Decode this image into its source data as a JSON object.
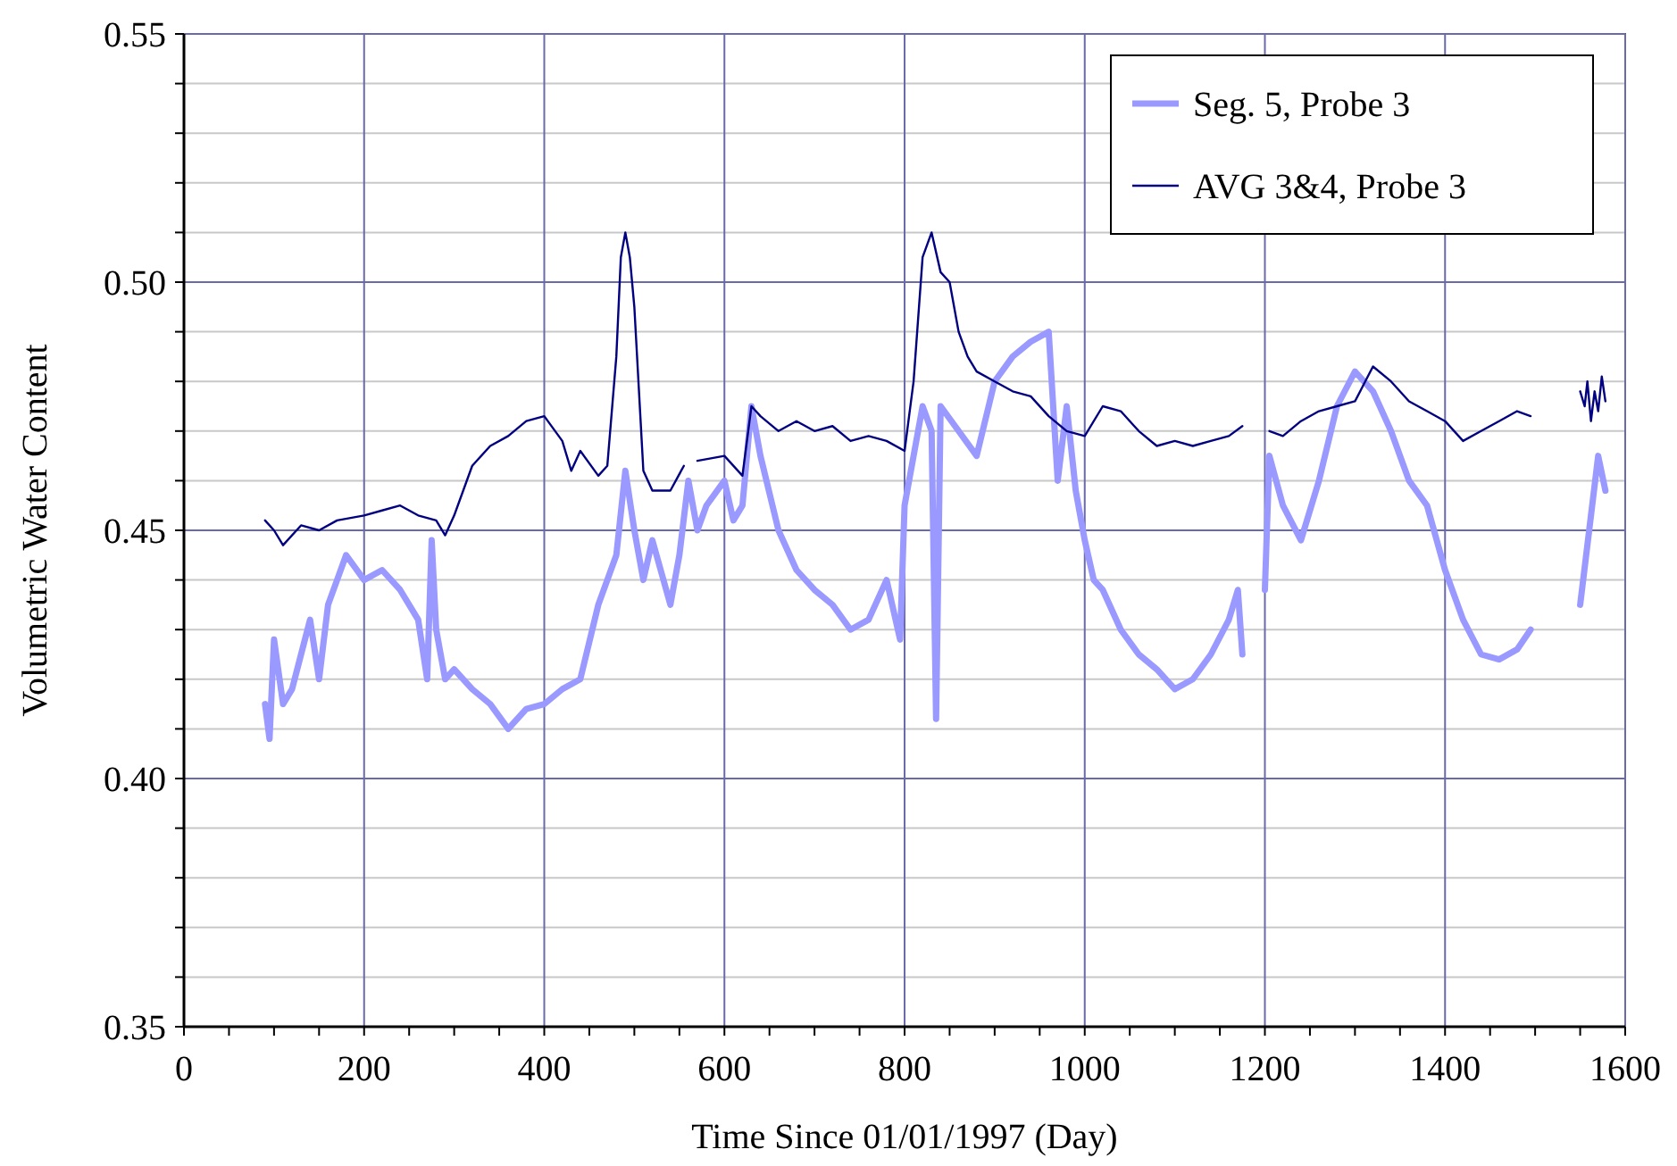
{
  "chart_data": {
    "type": "line",
    "xlabel": "Time Since 01/01/1997 (Day)",
    "ylabel": "Volumetric Water Content",
    "xlim": [
      0,
      1600
    ],
    "ylim": [
      0.35,
      0.55
    ],
    "xticks": [
      0,
      {
        "value": 50,
        "label": null
      },
      {
        "value": 100,
        "label": null
      },
      {
        "value": 150,
        "label": null
      },
      200,
      {
        "value": 250,
        "label": null
      },
      {
        "value": 300,
        "label": null
      },
      {
        "value": 350,
        "label": null
      },
      400,
      {
        "value": 450,
        "label": null
      },
      {
        "value": 500,
        "label": null
      },
      {
        "value": 550,
        "label": null
      },
      600,
      {
        "value": 650,
        "label": null
      },
      {
        "value": 700,
        "label": null
      },
      {
        "value": 750,
        "label": null
      },
      800,
      {
        "value": 850,
        "label": null
      },
      {
        "value": 900,
        "label": null
      },
      {
        "value": 950,
        "label": null
      },
      1000,
      {
        "value": 1050,
        "label": null
      },
      {
        "value": 1100,
        "label": null
      },
      {
        "value": 1150,
        "label": null
      },
      1200,
      {
        "value": 1250,
        "label": null
      },
      {
        "value": 1300,
        "label": null
      },
      {
        "value": 1350,
        "label": null
      },
      1400,
      {
        "value": 1450,
        "label": null
      },
      {
        "value": 1500,
        "label": null
      },
      {
        "value": 1550,
        "label": null
      },
      1600
    ],
    "yticks": [
      {
        "value": 0.35,
        "label": "0.35"
      },
      {
        "value": 0.36,
        "label": null
      },
      {
        "value": 0.37,
        "label": null
      },
      {
        "value": 0.38,
        "label": null
      },
      {
        "value": 0.39,
        "label": null
      },
      {
        "value": 0.4,
        "label": "0.40"
      },
      {
        "value": 0.41,
        "label": null
      },
      {
        "value": 0.42,
        "label": null
      },
      {
        "value": 0.43,
        "label": null
      },
      {
        "value": 0.44,
        "label": null
      },
      {
        "value": 0.45,
        "label": "0.45"
      },
      {
        "value": 0.46,
        "label": null
      },
      {
        "value": 0.47,
        "label": null
      },
      {
        "value": 0.48,
        "label": null
      },
      {
        "value": 0.49,
        "label": null
      },
      {
        "value": 0.5,
        "label": "0.50"
      },
      {
        "value": 0.51,
        "label": null
      },
      {
        "value": 0.52,
        "label": null
      },
      {
        "value": 0.53,
        "label": null
      },
      {
        "value": 0.54,
        "label": null
      },
      {
        "value": 0.55,
        "label": "0.55"
      }
    ],
    "grid": true,
    "legend": "top right",
    "marker": "none",
    "line_style": "solid",
    "series": [
      {
        "name": "Seg. 5, Probe 3",
        "color": "#9999ff",
        "x": [
          90,
          95,
          100,
          110,
          120,
          130,
          140,
          150,
          160,
          170,
          180,
          200,
          220,
          240,
          260,
          270,
          275,
          280,
          290,
          300,
          320,
          340,
          360,
          380,
          400,
          420,
          440,
          460,
          480,
          490,
          500,
          510,
          520,
          540,
          550,
          560,
          570,
          580,
          600,
          610,
          620,
          630,
          640,
          660,
          680,
          700,
          720,
          740,
          760,
          780,
          795,
          800,
          810,
          820,
          830,
          835,
          840,
          860,
          880,
          900,
          920,
          940,
          960,
          970,
          980,
          990,
          1000,
          1010,
          1020,
          1040,
          1060,
          1080,
          1100,
          1120,
          1140,
          1160,
          1170,
          1175,
          1187,
          1200,
          1205,
          1220,
          1240,
          1260,
          1280,
          1300,
          1320,
          1340,
          1360,
          1380,
          1400,
          1420,
          1440,
          1460,
          1480,
          1495,
          1520,
          1550,
          1560,
          1570,
          1578
        ],
        "values": [
          0.415,
          0.408,
          0.428,
          0.415,
          0.418,
          0.425,
          0.432,
          0.42,
          0.435,
          0.44,
          0.445,
          0.44,
          0.442,
          0.438,
          0.432,
          0.42,
          0.448,
          0.43,
          0.42,
          0.422,
          0.418,
          0.415,
          0.41,
          0.414,
          0.415,
          0.418,
          0.42,
          0.435,
          0.445,
          0.462,
          0.45,
          0.44,
          0.448,
          0.435,
          0.445,
          0.46,
          0.45,
          0.455,
          0.46,
          0.452,
          0.455,
          0.475,
          0.465,
          0.45,
          0.442,
          0.438,
          0.435,
          0.43,
          0.432,
          0.44,
          0.428,
          0.455,
          0.465,
          0.475,
          0.47,
          0.412,
          0.475,
          0.47,
          0.465,
          0.48,
          0.485,
          0.488,
          0.49,
          0.46,
          0.475,
          0.458,
          0.448,
          0.44,
          0.438,
          0.43,
          0.425,
          0.422,
          0.418,
          0.42,
          0.425,
          0.432,
          0.438,
          0.425,
          null,
          0.438,
          0.465,
          0.455,
          0.448,
          0.46,
          0.475,
          0.482,
          0.478,
          0.47,
          0.46,
          0.455,
          0.442,
          0.432,
          0.425,
          0.424,
          0.426,
          0.43,
          null,
          0.435,
          0.45,
          0.465,
          0.458
        ]
      },
      {
        "name": "AVG 3&4, Probe 3",
        "color": "#000080",
        "x": [
          90,
          100,
          110,
          130,
          150,
          170,
          200,
          220,
          240,
          260,
          280,
          290,
          300,
          320,
          340,
          360,
          380,
          400,
          420,
          430,
          440,
          460,
          470,
          480,
          485,
          490,
          495,
          500,
          510,
          520,
          540,
          555,
          562,
          570,
          600,
          620,
          630,
          640,
          660,
          680,
          700,
          720,
          740,
          760,
          780,
          800,
          810,
          820,
          830,
          840,
          850,
          860,
          870,
          880,
          900,
          920,
          940,
          960,
          980,
          1000,
          1020,
          1040,
          1060,
          1080,
          1100,
          1120,
          1140,
          1160,
          1175,
          1190,
          1205,
          1220,
          1240,
          1260,
          1280,
          1300,
          1320,
          1340,
          1360,
          1380,
          1400,
          1420,
          1440,
          1460,
          1480,
          1495,
          1520,
          1550,
          1555,
          1558,
          1562,
          1566,
          1570,
          1574,
          1578
        ],
        "values": [
          0.452,
          0.45,
          0.447,
          0.451,
          0.45,
          0.452,
          0.453,
          0.454,
          0.455,
          0.453,
          0.452,
          0.449,
          0.453,
          0.463,
          0.467,
          0.469,
          0.472,
          0.473,
          0.468,
          0.462,
          0.466,
          0.461,
          0.463,
          0.485,
          0.505,
          0.51,
          0.505,
          0.495,
          0.462,
          0.458,
          0.458,
          0.463,
          null,
          0.464,
          0.465,
          0.461,
          0.475,
          0.473,
          0.47,
          0.472,
          0.47,
          0.471,
          0.468,
          0.469,
          0.468,
          0.466,
          0.48,
          0.505,
          0.51,
          0.502,
          0.5,
          0.49,
          0.485,
          0.482,
          0.48,
          0.478,
          0.477,
          0.473,
          0.47,
          0.469,
          0.475,
          0.474,
          0.47,
          0.467,
          0.468,
          0.467,
          0.468,
          0.469,
          0.471,
          null,
          0.47,
          0.469,
          0.472,
          0.474,
          0.475,
          0.476,
          0.483,
          0.48,
          0.476,
          0.474,
          0.472,
          0.468,
          0.47,
          0.472,
          0.474,
          0.473,
          null,
          0.478,
          0.475,
          0.48,
          0.472,
          0.478,
          0.474,
          0.481,
          0.476
        ]
      }
    ]
  }
}
